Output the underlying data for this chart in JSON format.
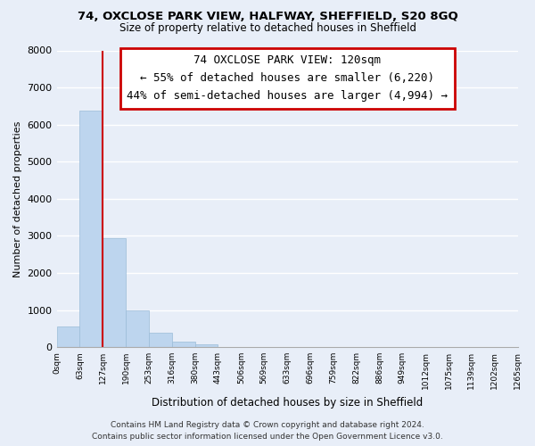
{
  "title1": "74, OXCLOSE PARK VIEW, HALFWAY, SHEFFIELD, S20 8GQ",
  "title2": "Size of property relative to detached houses in Sheffield",
  "xlabel": "Distribution of detached houses by size in Sheffield",
  "ylabel": "Number of detached properties",
  "bar_values": [
    560,
    6380,
    2950,
    980,
    380,
    160,
    80,
    0,
    0,
    0,
    0,
    0,
    0,
    0,
    0,
    0,
    0,
    0,
    0,
    0
  ],
  "bar_labels": [
    "0sqm",
    "63sqm",
    "127sqm",
    "190sqm",
    "253sqm",
    "316sqm",
    "380sqm",
    "443sqm",
    "506sqm",
    "569sqm",
    "633sqm",
    "696sqm",
    "759sqm",
    "822sqm",
    "886sqm",
    "949sqm",
    "1012sqm",
    "1075sqm",
    "1139sqm",
    "1202sqm",
    "1265sqm"
  ],
  "bar_color": "#bdd5ee",
  "bar_edge_color": "#9bbcd8",
  "vline_color": "#cc0000",
  "vline_x": 2.0,
  "annotation_title": "74 OXCLOSE PARK VIEW: 120sqm",
  "annotation_line1": "← 55% of detached houses are smaller (6,220)",
  "annotation_line2": "44% of semi-detached houses are larger (4,994) →",
  "ylim": [
    0,
    8000
  ],
  "yticks": [
    0,
    1000,
    2000,
    3000,
    4000,
    5000,
    6000,
    7000,
    8000
  ],
  "footer1": "Contains HM Land Registry data © Crown copyright and database right 2024.",
  "footer2": "Contains public sector information licensed under the Open Government Licence v3.0.",
  "bg_color": "#e8eef8",
  "plot_bg_color": "#e8eef8",
  "grid_color": "#ffffff",
  "spine_color": "#aaaaaa"
}
